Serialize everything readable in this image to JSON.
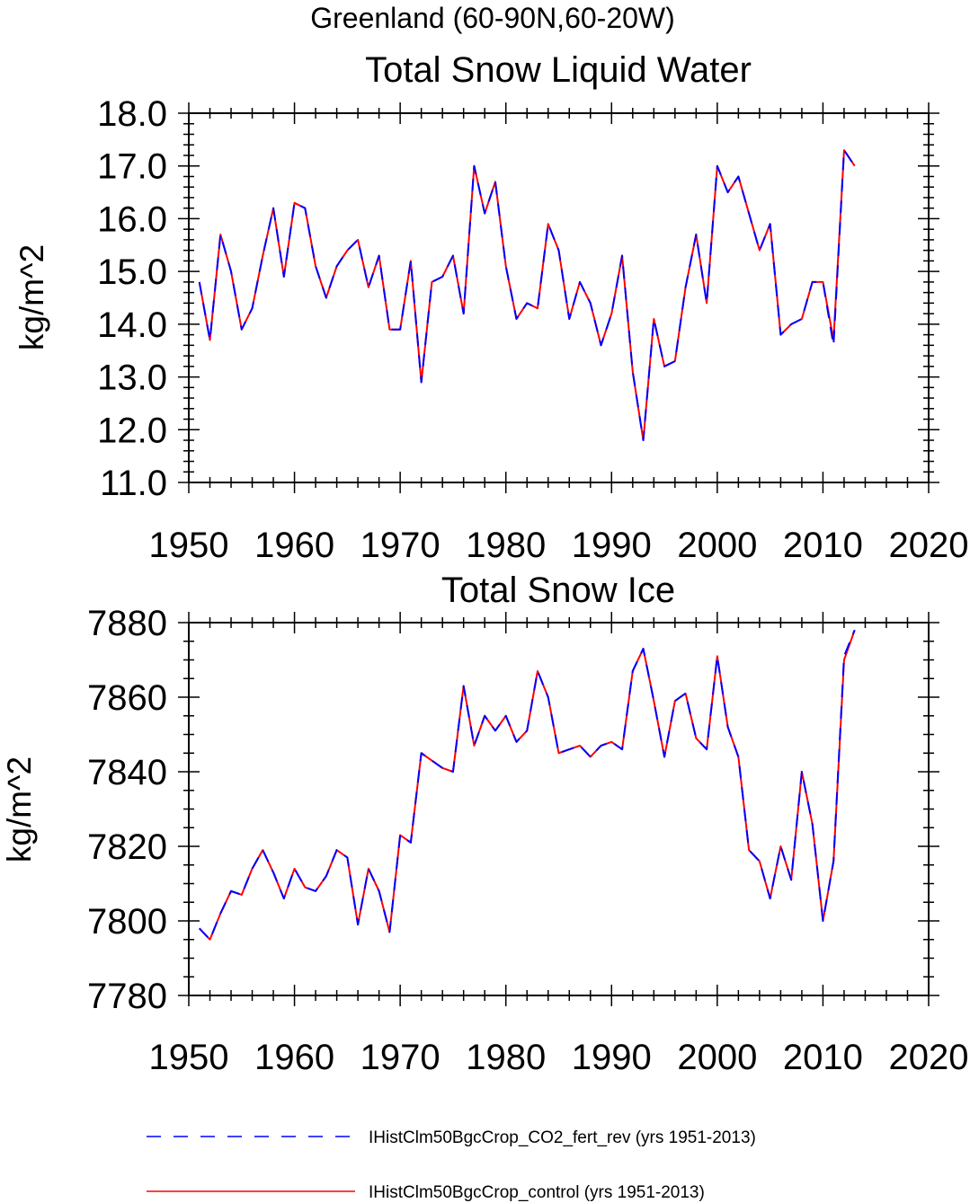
{
  "figure": {
    "title": "Greenland (60-90N,60-20W)"
  },
  "chart_data": [
    {
      "type": "line",
      "title": "Total Snow Liquid Water",
      "xlabel": "",
      "ylabel": "kg/m^2",
      "xlim": [
        1950,
        2020
      ],
      "ylim": [
        11.0,
        18.0
      ],
      "xticks": [
        1950,
        1960,
        1970,
        1980,
        1990,
        2000,
        2010,
        2020
      ],
      "yticks": [
        11.0,
        12.0,
        13.0,
        14.0,
        15.0,
        16.0,
        17.0,
        18.0
      ],
      "ytick_labels": [
        "11.0",
        "12.0",
        "13.0",
        "14.0",
        "15.0",
        "16.0",
        "17.0",
        "18.0"
      ],
      "grid": false,
      "x": [
        1951,
        1952,
        1953,
        1954,
        1955,
        1956,
        1957,
        1958,
        1959,
        1960,
        1961,
        1962,
        1963,
        1964,
        1965,
        1966,
        1967,
        1968,
        1969,
        1970,
        1971,
        1972,
        1973,
        1974,
        1975,
        1976,
        1977,
        1978,
        1979,
        1980,
        1981,
        1982,
        1983,
        1984,
        1985,
        1986,
        1987,
        1988,
        1989,
        1990,
        1991,
        1992,
        1993,
        1994,
        1995,
        1996,
        1997,
        1998,
        1999,
        2000,
        2001,
        2002,
        2003,
        2004,
        2005,
        2006,
        2007,
        2008,
        2009,
        2010,
        2011,
        2012,
        2013
      ],
      "series": [
        {
          "name": "IHistClm50BgcCrop_control (yrs 1951-2013)",
          "color": "#ff0000",
          "style": "solid",
          "values": [
            14.8,
            13.7,
            15.7,
            15.0,
            13.9,
            14.3,
            15.3,
            16.2,
            14.9,
            16.3,
            16.2,
            15.1,
            14.5,
            15.1,
            15.4,
            15.6,
            14.7,
            15.3,
            13.9,
            13.9,
            15.2,
            12.9,
            14.8,
            14.9,
            15.3,
            14.2,
            17.0,
            16.1,
            16.7,
            15.1,
            14.1,
            14.4,
            14.3,
            15.9,
            15.4,
            14.1,
            14.8,
            14.4,
            13.6,
            14.2,
            15.3,
            13.1,
            11.8,
            14.1,
            13.2,
            13.3,
            14.7,
            15.7,
            14.4,
            17.0,
            16.5,
            16.8,
            16.1,
            15.4,
            15.9,
            13.8,
            14.0,
            14.1,
            14.8,
            14.8,
            13.7,
            17.3,
            17.0
          ]
        },
        {
          "name": "IHistClm50BgcCrop_CO2_fert_rev (yrs 1951-2013)",
          "color": "#0000ff",
          "style": "dashed",
          "values": [
            14.8,
            13.7,
            15.7,
            15.0,
            13.9,
            14.3,
            15.3,
            16.2,
            14.9,
            16.3,
            16.2,
            15.1,
            14.5,
            15.1,
            15.4,
            15.6,
            14.7,
            15.3,
            13.9,
            13.9,
            15.2,
            12.9,
            14.8,
            14.9,
            15.3,
            14.2,
            17.0,
            16.1,
            16.7,
            15.1,
            14.1,
            14.4,
            14.3,
            15.9,
            15.4,
            14.1,
            14.8,
            14.4,
            13.6,
            14.2,
            15.3,
            13.1,
            11.8,
            14.1,
            13.2,
            13.3,
            14.7,
            15.7,
            14.4,
            17.0,
            16.5,
            16.8,
            16.1,
            15.4,
            15.9,
            13.8,
            14.0,
            14.1,
            14.8,
            14.8,
            13.6,
            17.3,
            17.0
          ]
        }
      ]
    },
    {
      "type": "line",
      "title": "Total Snow Ice",
      "xlabel": "",
      "ylabel": "kg/m^2",
      "xlim": [
        1950,
        2020
      ],
      "ylim": [
        7780,
        7880
      ],
      "xticks": [
        1950,
        1960,
        1970,
        1980,
        1990,
        2000,
        2010,
        2020
      ],
      "yticks": [
        7780,
        7800,
        7820,
        7840,
        7860,
        7880
      ],
      "ytick_labels": [
        "7780",
        "7800",
        "7820",
        "7840",
        "7860",
        "7880"
      ],
      "grid": false,
      "x": [
        1951,
        1952,
        1953,
        1954,
        1955,
        1956,
        1957,
        1958,
        1959,
        1960,
        1961,
        1962,
        1963,
        1964,
        1965,
        1966,
        1967,
        1968,
        1969,
        1970,
        1971,
        1972,
        1973,
        1974,
        1975,
        1976,
        1977,
        1978,
        1979,
        1980,
        1981,
        1982,
        1983,
        1984,
        1985,
        1986,
        1987,
        1988,
        1989,
        1990,
        1991,
        1992,
        1993,
        1994,
        1995,
        1996,
        1997,
        1998,
        1999,
        2000,
        2001,
        2002,
        2003,
        2004,
        2005,
        2006,
        2007,
        2008,
        2009,
        2010,
        2011,
        2012,
        2013
      ],
      "series": [
        {
          "name": "IHistClm50BgcCrop_control (yrs 1951-2013)",
          "color": "#ff0000",
          "style": "solid",
          "values": [
            7798,
            7795,
            7802,
            7808,
            7807,
            7814,
            7819,
            7813,
            7806,
            7814,
            7809,
            7808,
            7812,
            7819,
            7817,
            7799,
            7814,
            7808,
            7797,
            7823,
            7821,
            7845,
            7843,
            7841,
            7840,
            7863,
            7847,
            7855,
            7851,
            7855,
            7848,
            7851,
            7867,
            7860,
            7845,
            7846,
            7847,
            7844,
            7847,
            7848,
            7846,
            7867,
            7873,
            7859,
            7844,
            7859,
            7861,
            7849,
            7846,
            7871,
            7852,
            7844,
            7819,
            7816,
            7806,
            7820,
            7811,
            7840,
            7826,
            7800,
            7816,
            7870,
            7878
          ]
        },
        {
          "name": "IHistClm50BgcCrop_CO2_fert_rev (yrs 1951-2013)",
          "color": "#0000ff",
          "style": "dashed",
          "values": [
            7798,
            7795,
            7802,
            7808,
            7807,
            7814,
            7819,
            7813,
            7806,
            7814,
            7809,
            7808,
            7812,
            7819,
            7817,
            7799,
            7814,
            7808,
            7797,
            7823,
            7821,
            7845,
            7843,
            7841,
            7840,
            7863,
            7847,
            7855,
            7851,
            7855,
            7848,
            7851,
            7867,
            7860,
            7845,
            7846,
            7847,
            7844,
            7847,
            7848,
            7846,
            7867,
            7873,
            7859,
            7844,
            7859,
            7861,
            7849,
            7846,
            7871,
            7852,
            7844,
            7819,
            7816,
            7806,
            7820,
            7811,
            7840,
            7826,
            7800,
            7816,
            7871,
            7878
          ]
        }
      ]
    }
  ],
  "legend": {
    "placement": "bottom",
    "entries": [
      {
        "label": "IHistClm50BgcCrop_CO2_fert_rev (yrs 1951-2013)",
        "color": "#0000ff",
        "style": "dashed"
      },
      {
        "label": "IHistClm50BgcCrop_control (yrs 1951-2013)",
        "color": "#ff0000",
        "style": "solid"
      }
    ]
  }
}
